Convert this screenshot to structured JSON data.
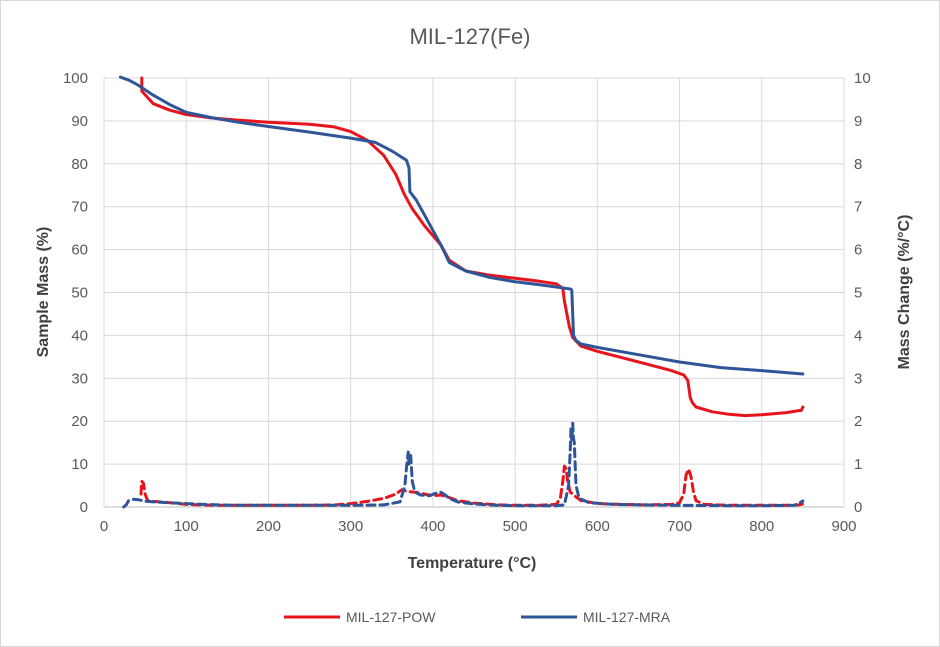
{
  "chart_data": {
    "type": "line",
    "title": "MIL-127(Fe)",
    "xlabel": "Temperature (°C)",
    "ylabel": "Sample Mass (%)",
    "y2label": "Mass Change (%/°C)",
    "xlim": [
      0,
      900
    ],
    "ylim": [
      0,
      100
    ],
    "y2lim": [
      0,
      10
    ],
    "xticks": [
      0,
      100,
      200,
      300,
      400,
      500,
      600,
      700,
      800,
      900
    ],
    "yticks": [
      0,
      10,
      20,
      30,
      40,
      50,
      60,
      70,
      80,
      90,
      100
    ],
    "y2ticks": [
      0,
      1,
      2,
      3,
      4,
      5,
      6,
      7,
      8,
      9,
      10
    ],
    "grid": true,
    "legend_position": "bottom",
    "legend": [
      "MIL-127-POW",
      "MIL-127-MRA"
    ],
    "series": [
      {
        "name": "MIL-127-POW",
        "color": "#e8141c",
        "axis": "left",
        "style": "solid",
        "x": [
          46,
          46,
          48,
          60,
          80,
          100,
          130,
          160,
          200,
          250,
          280,
          300,
          320,
          340,
          355,
          365,
          375,
          390,
          410,
          420,
          440,
          470,
          500,
          530,
          550,
          558,
          560,
          563,
          566,
          570,
          580,
          600,
          630,
          660,
          690,
          705,
          710,
          713,
          716,
          720,
          740,
          760,
          780,
          800,
          830,
          846,
          848,
          850
        ],
        "y": [
          100,
          97,
          96.5,
          94,
          92.5,
          91.5,
          90.7,
          90.2,
          89.7,
          89.2,
          88.6,
          87.5,
          85.5,
          82,
          77.5,
          73,
          69.5,
          65.5,
          61,
          57.5,
          55,
          54,
          53.3,
          52.6,
          52,
          51,
          48,
          45,
          42,
          39.5,
          37.5,
          36.3,
          34.8,
          33.3,
          31.8,
          30.8,
          29.5,
          25.5,
          24.2,
          23.3,
          22.2,
          21.6,
          21.3,
          21.5,
          22,
          22.5,
          22.5,
          23.3
        ]
      },
      {
        "name": "MIL-127-MRA",
        "color": "#2e5597",
        "axis": "left",
        "style": "solid",
        "x": [
          20,
          30,
          40,
          48,
          60,
          80,
          100,
          130,
          160,
          200,
          250,
          300,
          330,
          350,
          360,
          368,
          371,
          372,
          374,
          380,
          390,
          410,
          420,
          440,
          470,
          500,
          530,
          560,
          568,
          569,
          570,
          571,
          574,
          580,
          600,
          650,
          700,
          750,
          800,
          850
        ],
        "y": [
          100.2,
          99.5,
          98.5,
          97.5,
          96,
          93.8,
          92,
          90.8,
          89.8,
          88.7,
          87.4,
          86,
          85,
          83,
          81.8,
          80.8,
          79,
          73.5,
          73,
          71.5,
          68,
          61,
          57,
          55,
          53.5,
          52.5,
          51.8,
          51,
          50.8,
          50.5,
          45,
          40,
          38.8,
          38,
          37.2,
          35.5,
          33.8,
          32.5,
          31.8,
          31
        ]
      },
      {
        "name": "MIL-127-POW",
        "color": "#e8141c",
        "axis": "right",
        "style": "dashed",
        "x": [
          45,
          46,
          48,
          50,
          53,
          60,
          80,
          100,
          120,
          140,
          160,
          200,
          250,
          280,
          300,
          320,
          340,
          355,
          362,
          370,
          380,
          390,
          400,
          410,
          420,
          430,
          450,
          480,
          500,
          530,
          550,
          555,
          558,
          560,
          562,
          564,
          567,
          570,
          575,
          580,
          600,
          630,
          660,
          690,
          700,
          705,
          708,
          711,
          714,
          717,
          720,
          730,
          760,
          800,
          830,
          845,
          850
        ],
        "y": [
          0.3,
          0.6,
          0.55,
          0.3,
          0.15,
          0.13,
          0.1,
          0.06,
          0.05,
          0.04,
          0.04,
          0.04,
          0.04,
          0.05,
          0.08,
          0.13,
          0.2,
          0.3,
          0.4,
          0.36,
          0.34,
          0.3,
          0.26,
          0.28,
          0.22,
          0.15,
          0.09,
          0.05,
          0.04,
          0.04,
          0.06,
          0.2,
          0.6,
          0.95,
          0.9,
          0.6,
          0.35,
          0.3,
          0.22,
          0.15,
          0.08,
          0.06,
          0.05,
          0.06,
          0.1,
          0.3,
          0.75,
          0.88,
          0.7,
          0.35,
          0.15,
          0.06,
          0.04,
          0.04,
          0.04,
          0.05,
          0.07
        ]
      },
      {
        "name": "MIL-127-MRA",
        "color": "#2e5597",
        "axis": "right",
        "style": "dashed",
        "x": [
          24,
          27,
          30,
          36,
          42,
          48,
          60,
          80,
          100,
          120,
          140,
          160,
          200,
          250,
          300,
          340,
          360,
          366,
          368,
          370,
          371,
          372,
          373,
          375,
          378,
          385,
          395,
          405,
          410,
          415,
          420,
          430,
          450,
          480,
          500,
          530,
          550,
          560,
          565,
          567,
          568,
          569,
          570,
          571,
          572,
          574,
          578,
          590,
          620,
          660,
          700,
          760,
          800,
          840,
          846,
          850
        ],
        "y": [
          0,
          0.05,
          0.15,
          0.18,
          0.17,
          0.14,
          0.12,
          0.1,
          0.08,
          0.06,
          0.05,
          0.04,
          0.04,
          0.04,
          0.04,
          0.05,
          0.12,
          0.5,
          0.95,
          1.28,
          1.0,
          1.05,
          1.2,
          0.6,
          0.35,
          0.28,
          0.26,
          0.33,
          0.34,
          0.28,
          0.2,
          0.12,
          0.07,
          0.04,
          0.03,
          0.03,
          0.03,
          0.05,
          0.5,
          1.3,
          1.85,
          1.55,
          1.95,
          1.6,
          1.5,
          0.5,
          0.2,
          0.1,
          0.06,
          0.05,
          0.04,
          0.03,
          0.03,
          0.04,
          0.1,
          0.14
        ]
      }
    ]
  }
}
